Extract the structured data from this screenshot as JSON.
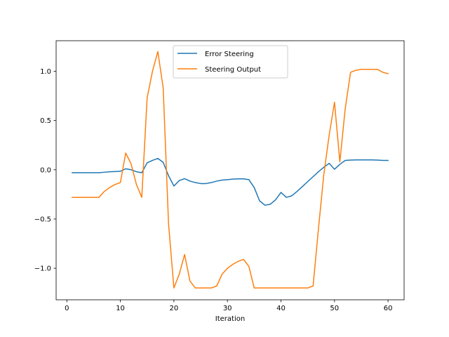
{
  "chart_data": {
    "type": "line",
    "title": "",
    "xlabel": "Iteration",
    "ylabel": "",
    "xlim": [
      -2,
      63
    ],
    "ylim": [
      -1.32,
      1.31
    ],
    "x_ticks": [
      0,
      10,
      20,
      30,
      40,
      50,
      60
    ],
    "x_tick_labels": [
      "0",
      "10",
      "20",
      "30",
      "40",
      "50",
      "60"
    ],
    "y_ticks": [
      -1.0,
      -0.5,
      0.0,
      0.5,
      1.0
    ],
    "y_tick_labels": [
      "−1.0",
      "−0.5",
      "0.0",
      "0.5",
      "1.0"
    ],
    "grid": false,
    "legend_position": "upper-center",
    "series": [
      {
        "name": "Error Steering",
        "color": "#1f77b4",
        "x": [
          1,
          2,
          3,
          4,
          5,
          6,
          7,
          8,
          9,
          10,
          11,
          12,
          13,
          14,
          15,
          16,
          17,
          18,
          19,
          20,
          21,
          22,
          23,
          24,
          25,
          26,
          27,
          28,
          29,
          30,
          31,
          32,
          33,
          34,
          35,
          36,
          37,
          38,
          39,
          40,
          41,
          42,
          43,
          44,
          45,
          46,
          47,
          48,
          49,
          50,
          51,
          52,
          53,
          54,
          55,
          56,
          57,
          58,
          59,
          60
        ],
        "values": [
          -0.03,
          -0.03,
          -0.03,
          -0.03,
          -0.03,
          -0.03,
          -0.025,
          -0.02,
          -0.018,
          -0.015,
          0.01,
          0.0,
          -0.02,
          -0.03,
          0.07,
          0.095,
          0.115,
          0.075,
          -0.06,
          -0.165,
          -0.11,
          -0.09,
          -0.115,
          -0.13,
          -0.14,
          -0.14,
          -0.13,
          -0.115,
          -0.105,
          -0.1,
          -0.095,
          -0.092,
          -0.092,
          -0.1,
          -0.18,
          -0.315,
          -0.36,
          -0.35,
          -0.305,
          -0.23,
          -0.28,
          -0.265,
          -0.22,
          -0.17,
          -0.12,
          -0.07,
          -0.02,
          0.025,
          0.065,
          0.005,
          0.055,
          0.095,
          0.098,
          0.1,
          0.1,
          0.1,
          0.1,
          0.098,
          0.095,
          0.095
        ]
      },
      {
        "name": "Steering Output",
        "color": "#ff7f0e",
        "x": [
          1,
          2,
          3,
          4,
          5,
          6,
          7,
          8,
          9,
          10,
          11,
          12,
          13,
          14,
          15,
          16,
          17,
          18,
          19,
          20,
          21,
          22,
          23,
          24,
          25,
          26,
          27,
          28,
          29,
          30,
          31,
          32,
          33,
          34,
          35,
          36,
          37,
          38,
          39,
          40,
          41,
          42,
          43,
          44,
          45,
          46,
          47,
          48,
          49,
          50,
          51,
          52,
          53,
          54,
          55,
          56,
          57,
          58,
          59,
          60
        ],
        "values": [
          -0.28,
          -0.28,
          -0.28,
          -0.28,
          -0.28,
          -0.28,
          -0.22,
          -0.18,
          -0.15,
          -0.13,
          0.17,
          0.06,
          -0.15,
          -0.28,
          0.73,
          1.0,
          1.2,
          0.83,
          -0.55,
          -1.2,
          -1.06,
          -0.86,
          -1.13,
          -1.2,
          -1.2,
          -1.2,
          -1.2,
          -1.18,
          -1.06,
          -1.0,
          -0.96,
          -0.93,
          -0.91,
          -0.98,
          -1.2,
          -1.2,
          -1.2,
          -1.2,
          -1.2,
          -1.2,
          -1.2,
          -1.2,
          -1.2,
          -1.2,
          -1.2,
          -1.18,
          -0.6,
          -0.05,
          0.35,
          0.685,
          0.08,
          0.62,
          0.99,
          1.01,
          1.02,
          1.02,
          1.02,
          1.02,
          0.99,
          0.975
        ]
      }
    ]
  }
}
